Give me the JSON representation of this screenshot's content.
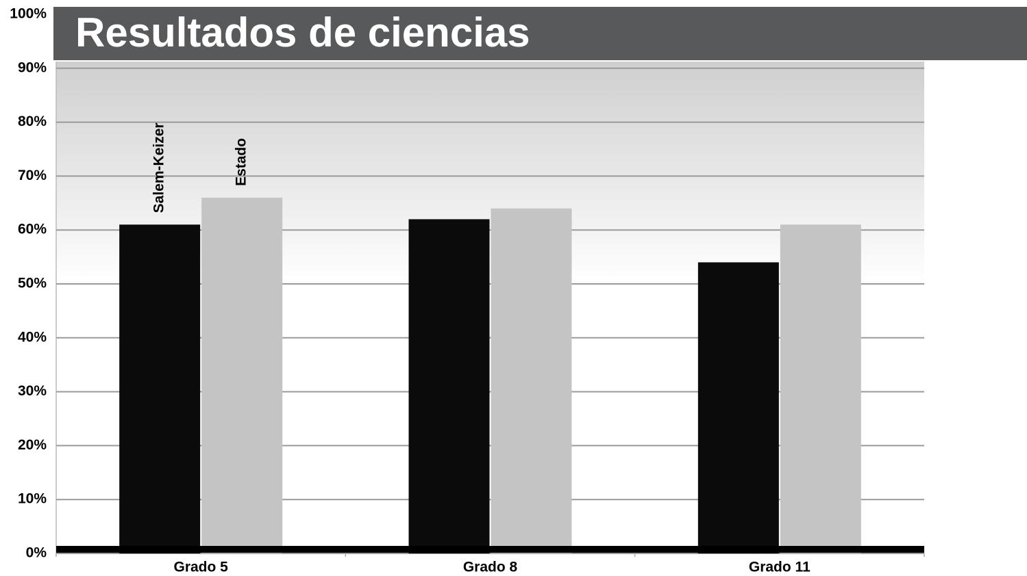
{
  "chart_data": {
    "type": "bar",
    "title": "Resultados de ciencias",
    "categories": [
      "Grado 5",
      "Grado 8",
      "Grado 11"
    ],
    "series": [
      {
        "name": "Salem-Keizer",
        "color": "#0b0b0b",
        "values": [
          61,
          62,
          54
        ]
      },
      {
        "name": "Estado",
        "color": "#c4c4c4",
        "values": [
          66,
          64,
          61
        ]
      }
    ],
    "ylim": [
      0,
      100
    ],
    "yticks": [
      {
        "value": 0,
        "label": "0%"
      },
      {
        "value": 10,
        "label": "10%"
      },
      {
        "value": 20,
        "label": "20%"
      },
      {
        "value": 30,
        "label": "30%"
      },
      {
        "value": 40,
        "label": "40%"
      },
      {
        "value": 50,
        "label": "50%"
      },
      {
        "value": 60,
        "label": "60%"
      },
      {
        "value": 70,
        "label": "70%"
      },
      {
        "value": 80,
        "label": "80%"
      },
      {
        "value": 90,
        "label": "90%"
      },
      {
        "value": 100,
        "label": "100%"
      }
    ],
    "grid": true
  }
}
